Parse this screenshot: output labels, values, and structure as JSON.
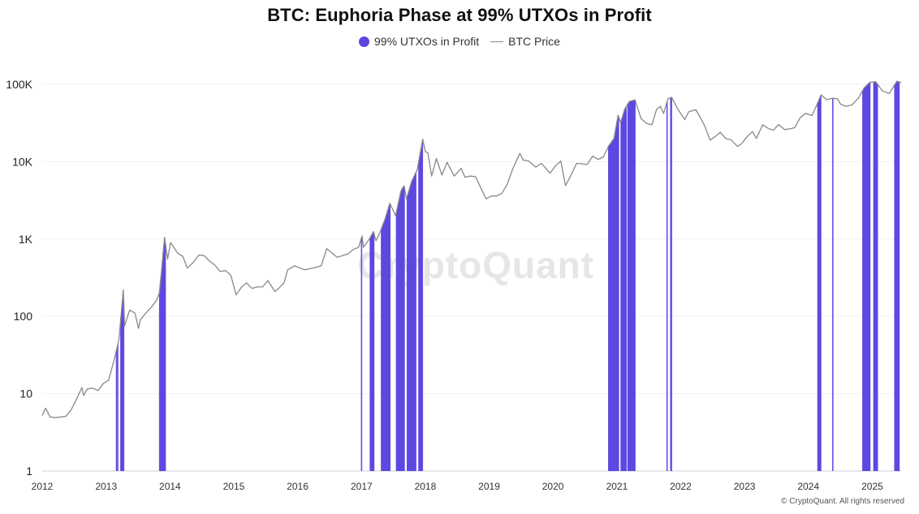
{
  "chart_data": {
    "type": "line",
    "title": "BTC: Euphoria Phase at 99% UTXOs in Profit",
    "legend": [
      {
        "label": "99% UTXOs in Profit",
        "color": "#5b47e0",
        "marker": "dot"
      },
      {
        "label": "BTC Price",
        "color": "#888888",
        "marker": "line"
      }
    ],
    "legend_position": "top-center",
    "y_scale": "log",
    "ylim": [
      1,
      100000
    ],
    "y_ticks": [
      {
        "value": 1,
        "label": "1"
      },
      {
        "value": 10,
        "label": "10"
      },
      {
        "value": 100,
        "label": "100"
      },
      {
        "value": 1000,
        "label": "1K"
      },
      {
        "value": 10000,
        "label": "10K"
      },
      {
        "value": 100000,
        "label": "100K"
      }
    ],
    "xlim": [
      "2012-01-01",
      "2025-06-15"
    ],
    "x_ticks": [
      "2012",
      "2013",
      "2014",
      "2015",
      "2016",
      "2017",
      "2018",
      "2019",
      "2020",
      "2021",
      "2022",
      "2023",
      "2024",
      "2025"
    ],
    "grid": true,
    "series": [
      {
        "name": "BTC Price",
        "color": "#888888",
        "points": [
          [
            "2012-01-01",
            5.2
          ],
          [
            "2012-01-20",
            6.5
          ],
          [
            "2012-02-15",
            5.0
          ],
          [
            "2012-03-15",
            4.9
          ],
          [
            "2012-04-15",
            5.0
          ],
          [
            "2012-05-15",
            5.1
          ],
          [
            "2012-06-15",
            6.2
          ],
          [
            "2012-07-15",
            8.5
          ],
          [
            "2012-08-15",
            12.0
          ],
          [
            "2012-08-25",
            9.5
          ],
          [
            "2012-09-15",
            11.5
          ],
          [
            "2012-10-15",
            11.8
          ],
          [
            "2012-11-15",
            11.0
          ],
          [
            "2012-12-15",
            13.5
          ],
          [
            "2013-01-15",
            15.0
          ],
          [
            "2013-02-15",
            27.0
          ],
          [
            "2013-03-15",
            50.0
          ],
          [
            "2013-04-09",
            220.0
          ],
          [
            "2013-04-16",
            75.0
          ],
          [
            "2013-05-15",
            120.0
          ],
          [
            "2013-06-15",
            110.0
          ],
          [
            "2013-07-05",
            70.0
          ],
          [
            "2013-07-15",
            90.0
          ],
          [
            "2013-08-15",
            110.0
          ],
          [
            "2013-09-15",
            130.0
          ],
          [
            "2013-10-15",
            160.0
          ],
          [
            "2013-11-01",
            200.0
          ],
          [
            "2013-11-15",
            420.0
          ],
          [
            "2013-12-01",
            1050.0
          ],
          [
            "2013-12-18",
            550.0
          ],
          [
            "2014-01-05",
            900.0
          ],
          [
            "2014-02-15",
            650.0
          ],
          [
            "2014-03-15",
            600.0
          ],
          [
            "2014-04-10",
            420.0
          ],
          [
            "2014-05-15",
            500.0
          ],
          [
            "2014-06-15",
            620.0
          ],
          [
            "2014-07-15",
            610.0
          ],
          [
            "2014-08-15",
            520.0
          ],
          [
            "2014-09-15",
            460.0
          ],
          [
            "2014-10-15",
            380.0
          ],
          [
            "2014-11-15",
            390.0
          ],
          [
            "2014-12-15",
            340.0
          ],
          [
            "2015-01-14",
            190.0
          ],
          [
            "2015-02-15",
            240.0
          ],
          [
            "2015-03-15",
            270.0
          ],
          [
            "2015-04-15",
            230.0
          ],
          [
            "2015-05-15",
            240.0
          ],
          [
            "2015-06-15",
            240.0
          ],
          [
            "2015-07-15",
            290.0
          ],
          [
            "2015-08-24",
            210.0
          ],
          [
            "2015-09-15",
            230.0
          ],
          [
            "2015-10-15",
            270.0
          ],
          [
            "2015-11-05",
            400.0
          ],
          [
            "2015-12-15",
            450.0
          ],
          [
            "2016-01-15",
            420.0
          ],
          [
            "2016-02-15",
            400.0
          ],
          [
            "2016-03-15",
            415.0
          ],
          [
            "2016-04-15",
            430.0
          ],
          [
            "2016-05-15",
            450.0
          ],
          [
            "2016-06-16",
            750.0
          ],
          [
            "2016-07-15",
            660.0
          ],
          [
            "2016-08-15",
            580.0
          ],
          [
            "2016-09-15",
            610.0
          ],
          [
            "2016-10-15",
            640.0
          ],
          [
            "2016-11-15",
            730.0
          ],
          [
            "2016-12-15",
            780.0
          ],
          [
            "2017-01-04",
            1100.0
          ],
          [
            "2017-01-12",
            780.0
          ],
          [
            "2017-02-15",
            1000.0
          ],
          [
            "2017-03-10",
            1250.0
          ],
          [
            "2017-03-25",
            950.0
          ],
          [
            "2017-04-15",
            1200.0
          ],
          [
            "2017-05-15",
            1800.0
          ],
          [
            "2017-06-12",
            2900.0
          ],
          [
            "2017-07-15",
            2000.0
          ],
          [
            "2017-08-15",
            4200.0
          ],
          [
            "2017-09-01",
            4900.0
          ],
          [
            "2017-09-15",
            3300.0
          ],
          [
            "2017-10-15",
            5600.0
          ],
          [
            "2017-11-15",
            7800.0
          ],
          [
            "2017-12-17",
            19500.0
          ],
          [
            "2018-01-01",
            13500.0
          ],
          [
            "2018-01-15",
            13000.0
          ],
          [
            "2018-02-06",
            6500.0
          ],
          [
            "2018-03-05",
            11000.0
          ],
          [
            "2018-04-06",
            6700.0
          ],
          [
            "2018-05-05",
            9800.0
          ],
          [
            "2018-06-15",
            6500.0
          ],
          [
            "2018-07-25",
            8200.0
          ],
          [
            "2018-08-15",
            6300.0
          ],
          [
            "2018-09-15",
            6500.0
          ],
          [
            "2018-10-15",
            6400.0
          ],
          [
            "2018-11-20",
            4300.0
          ],
          [
            "2018-12-15",
            3300.0
          ],
          [
            "2019-01-15",
            3600.0
          ],
          [
            "2019-02-15",
            3600.0
          ],
          [
            "2019-03-15",
            3900.0
          ],
          [
            "2019-04-15",
            5100.0
          ],
          [
            "2019-05-15",
            8000.0
          ],
          [
            "2019-06-26",
            12800.0
          ],
          [
            "2019-07-15",
            10500.0
          ],
          [
            "2019-08-15",
            10200.0
          ],
          [
            "2019-09-25",
            8500.0
          ],
          [
            "2019-10-26",
            9500.0
          ],
          [
            "2019-11-15",
            8500.0
          ],
          [
            "2019-12-15",
            7100.0
          ],
          [
            "2020-01-15",
            8800.0
          ],
          [
            "2020-02-15",
            10200.0
          ],
          [
            "2020-03-13",
            4900.0
          ],
          [
            "2020-04-15",
            6800.0
          ],
          [
            "2020-05-15",
            9500.0
          ],
          [
            "2020-06-15",
            9400.0
          ],
          [
            "2020-07-15",
            9200.0
          ],
          [
            "2020-08-15",
            11800.0
          ],
          [
            "2020-09-15",
            10700.0
          ],
          [
            "2020-10-15",
            11500.0
          ],
          [
            "2020-11-15",
            16000.0
          ],
          [
            "2020-12-15",
            20000.0
          ],
          [
            "2021-01-08",
            40000.0
          ],
          [
            "2021-01-22",
            32000.0
          ],
          [
            "2021-02-15",
            48000.0
          ],
          [
            "2021-03-13",
            60000.0
          ],
          [
            "2021-04-14",
            63000.0
          ],
          [
            "2021-05-19",
            36000.0
          ],
          [
            "2021-06-22",
            31000.0
          ],
          [
            "2021-07-20",
            30000.0
          ],
          [
            "2021-08-15",
            47000.0
          ],
          [
            "2021-09-07",
            52000.0
          ],
          [
            "2021-09-25",
            42000.0
          ],
          [
            "2021-10-20",
            65000.0
          ],
          [
            "2021-11-10",
            68000.0
          ],
          [
            "2021-12-15",
            48000.0
          ],
          [
            "2022-01-24",
            35000.0
          ],
          [
            "2022-02-15",
            44000.0
          ],
          [
            "2022-03-29",
            47000.0
          ],
          [
            "2022-04-15",
            40000.0
          ],
          [
            "2022-05-15",
            30000.0
          ],
          [
            "2022-06-18",
            19000.0
          ],
          [
            "2022-07-15",
            21000.0
          ],
          [
            "2022-08-15",
            24000.0
          ],
          [
            "2022-09-15",
            20000.0
          ],
          [
            "2022-10-15",
            19200.0
          ],
          [
            "2022-11-21",
            15800.0
          ],
          [
            "2022-12-15",
            17000.0
          ],
          [
            "2023-01-15",
            21000.0
          ],
          [
            "2023-02-15",
            24500.0
          ],
          [
            "2023-03-10",
            20000.0
          ],
          [
            "2023-04-15",
            30000.0
          ],
          [
            "2023-05-15",
            27000.0
          ],
          [
            "2023-06-15",
            25500.0
          ],
          [
            "2023-07-15",
            30200.0
          ],
          [
            "2023-08-18",
            26000.0
          ],
          [
            "2023-09-15",
            26500.0
          ],
          [
            "2023-10-15",
            27500.0
          ],
          [
            "2023-11-15",
            37000.0
          ],
          [
            "2023-12-15",
            42000.0
          ],
          [
            "2024-01-22",
            39500.0
          ],
          [
            "2024-02-15",
            52000.0
          ],
          [
            "2024-03-14",
            73000.0
          ],
          [
            "2024-04-15",
            63000.0
          ],
          [
            "2024-05-15",
            66000.0
          ],
          [
            "2024-06-15",
            65000.0
          ],
          [
            "2024-07-05",
            55000.0
          ],
          [
            "2024-08-05",
            52000.0
          ],
          [
            "2024-09-06",
            54000.0
          ],
          [
            "2024-10-15",
            67000.0
          ],
          [
            "2024-11-15",
            90000.0
          ],
          [
            "2024-12-17",
            106000.0
          ],
          [
            "2025-01-20",
            108000.0
          ],
          [
            "2025-02-28",
            82000.0
          ],
          [
            "2025-04-08",
            76000.0
          ],
          [
            "2025-05-22",
            110000.0
          ],
          [
            "2025-06-15",
            105000.0
          ]
        ]
      },
      {
        "name": "99% UTXOs in Profit",
        "color": "#5b47e0",
        "type": "band",
        "periods": [
          [
            "2013-03-01",
            "2013-03-02"
          ],
          [
            "2013-03-08",
            "2013-03-09"
          ],
          [
            "2013-03-26",
            "2013-04-12"
          ],
          [
            "2013-11-03",
            "2013-12-05"
          ],
          [
            "2017-01-01",
            "2017-01-04"
          ],
          [
            "2017-02-20",
            "2017-03-14"
          ],
          [
            "2017-04-25",
            "2017-06-14"
          ],
          [
            "2017-07-20",
            "2017-09-02"
          ],
          [
            "2017-09-20",
            "2017-11-08"
          ],
          [
            "2017-11-25",
            "2017-12-18"
          ],
          [
            "2020-11-15",
            "2021-01-10"
          ],
          [
            "2021-01-25",
            "2021-02-25"
          ],
          [
            "2021-03-05",
            "2021-04-16"
          ],
          [
            "2021-10-15",
            "2021-10-17"
          ],
          [
            "2021-11-05",
            "2021-11-09"
          ],
          [
            "2024-02-25",
            "2024-03-15"
          ],
          [
            "2024-05-20",
            "2024-05-22"
          ],
          [
            "2024-11-08",
            "2024-12-20"
          ],
          [
            "2025-01-10",
            "2025-02-02"
          ],
          [
            "2025-05-10",
            "2025-06-05"
          ]
        ]
      }
    ]
  },
  "watermark": "CryptoQuant",
  "copyright": "© CryptoQuant. All rights reserved"
}
